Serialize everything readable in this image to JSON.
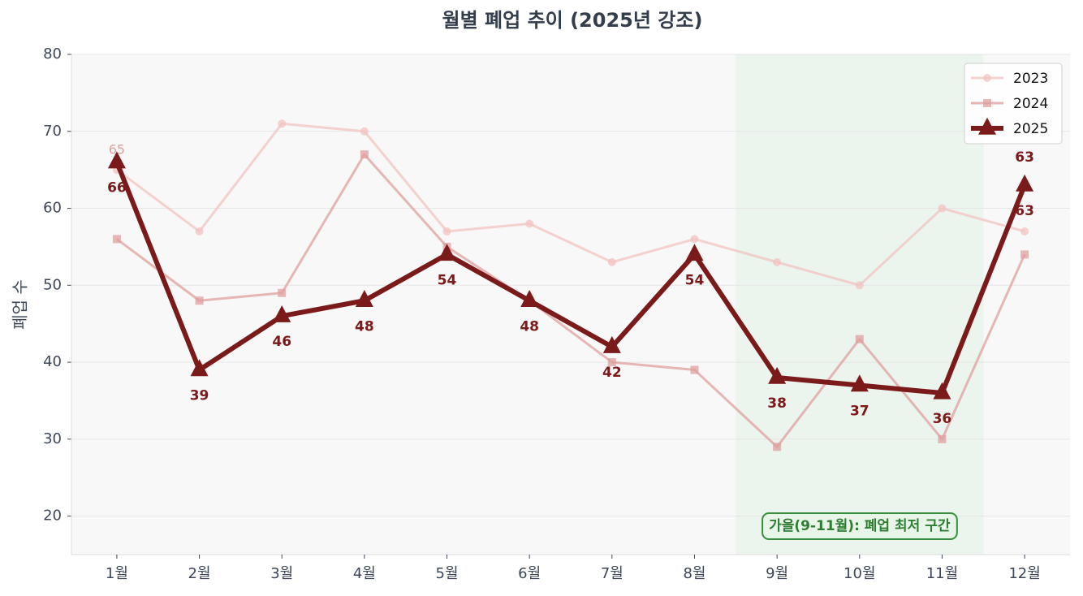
{
  "chart_data": {
    "type": "line",
    "title": "월별 폐업 추이 (2025년 강조)",
    "y_label": "폐업 수",
    "categories": [
      "1월",
      "2월",
      "3월",
      "4월",
      "5월",
      "6월",
      "7월",
      "8월",
      "9월",
      "10월",
      "11월",
      "12월"
    ],
    "series": [
      {
        "name": "2023",
        "color": "#f0c4c0",
        "marker": "circle",
        "values": [
          65,
          57,
          71,
          70,
          57,
          58,
          53,
          56,
          53,
          50,
          60,
          57
        ]
      },
      {
        "name": "2024",
        "color": "#dfa09e",
        "marker": "square",
        "values": [
          56,
          48,
          49,
          67,
          55,
          48,
          40,
          39,
          29,
          43,
          30,
          54
        ]
      },
      {
        "name": "2025",
        "color": "#7b1a1a",
        "marker": "triangle",
        "values": [
          66,
          39,
          46,
          48,
          54,
          48,
          42,
          54,
          38,
          37,
          36,
          63
        ]
      }
    ],
    "ylim": [
      15,
      80
    ],
    "yticks": [
      20,
      30,
      40,
      50,
      60,
      70,
      80
    ],
    "grid": true,
    "legend": "upper right",
    "highlight": {
      "start": "9월",
      "end": "11월",
      "label": "가을(9-11월): 폐업 최저 구간"
    }
  }
}
